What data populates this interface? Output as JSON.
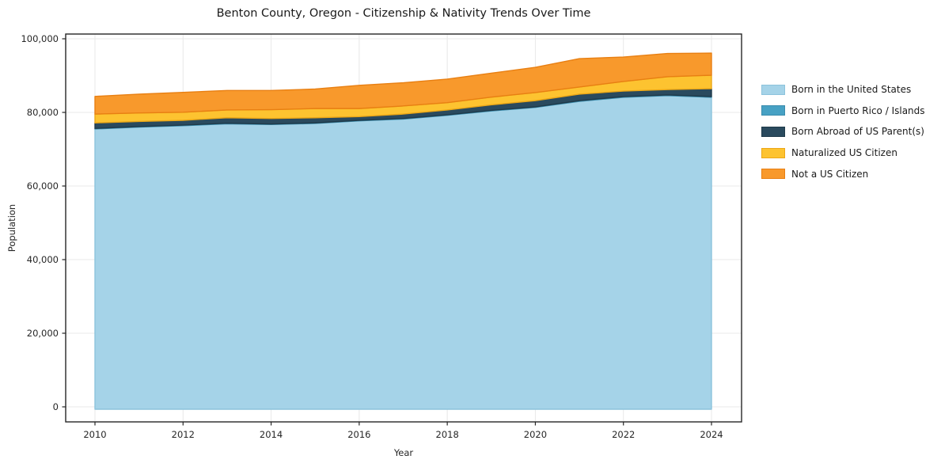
{
  "chart_data": {
    "type": "area",
    "stacked": true,
    "title": "Benton County, Oregon - Citizenship & Nativity Trends Over Time",
    "xlabel": "Year",
    "ylabel": "Population",
    "x": [
      2010,
      2011,
      2012,
      2013,
      2014,
      2015,
      2016,
      2017,
      2018,
      2019,
      2020,
      2021,
      2022,
      2023,
      2024
    ],
    "series": [
      {
        "name": "Born in the United States",
        "color": "#a5d3e8",
        "edge_color": "#8cc3dc",
        "values": [
          75500,
          76000,
          76400,
          76900,
          76700,
          77000,
          77700,
          78200,
          79200,
          80400,
          81350,
          83000,
          84100,
          84550,
          84100
        ]
      },
      {
        "name": "Born in Puerto Rico / Islands",
        "color": "#47a1c4",
        "edge_color": "#3a8cad",
        "values": [
          150,
          150,
          150,
          150,
          150,
          150,
          150,
          150,
          150,
          150,
          150,
          200,
          200,
          200,
          200
        ]
      },
      {
        "name": "Born Abroad of US Parent(s)",
        "color": "#2a4a5e",
        "edge_color": "#1f3a4a",
        "values": [
          1500,
          1400,
          1300,
          1500,
          1500,
          1400,
          1000,
          1200,
          1300,
          1500,
          1700,
          1750,
          1500,
          1450,
          2150
        ]
      },
      {
        "name": "Naturalized US Citizen",
        "color": "#fdc330",
        "edge_color": "#eca716",
        "values": [
          2400,
          2300,
          2200,
          2100,
          2400,
          2500,
          2200,
          2200,
          2000,
          2100,
          2200,
          1950,
          2600,
          3500,
          3650
        ]
      },
      {
        "name": "Not a US Citizen",
        "color": "#f8992c",
        "edge_color": "#e87f12",
        "values": [
          4800,
          5100,
          5400,
          5300,
          5200,
          5300,
          6300,
          6300,
          6400,
          6500,
          6850,
          7700,
          6650,
          6300,
          6000
        ]
      }
    ],
    "ylim": [
      0,
      100000
    ],
    "grid": true,
    "legend_position": "right",
    "xticks": {
      "values": [
        2010,
        2012,
        2014,
        2016,
        2018,
        2020,
        2022,
        2024
      ],
      "labels": [
        "2010",
        "2012",
        "2014",
        "2016",
        "2018",
        "2020",
        "2022",
        "2024"
      ]
    },
    "yticks": {
      "values": [
        0,
        20000,
        40000,
        60000,
        80000,
        100000
      ],
      "labels": [
        "0",
        "20,000",
        "40,000",
        "60,000",
        "80,000",
        "100,000"
      ]
    }
  }
}
